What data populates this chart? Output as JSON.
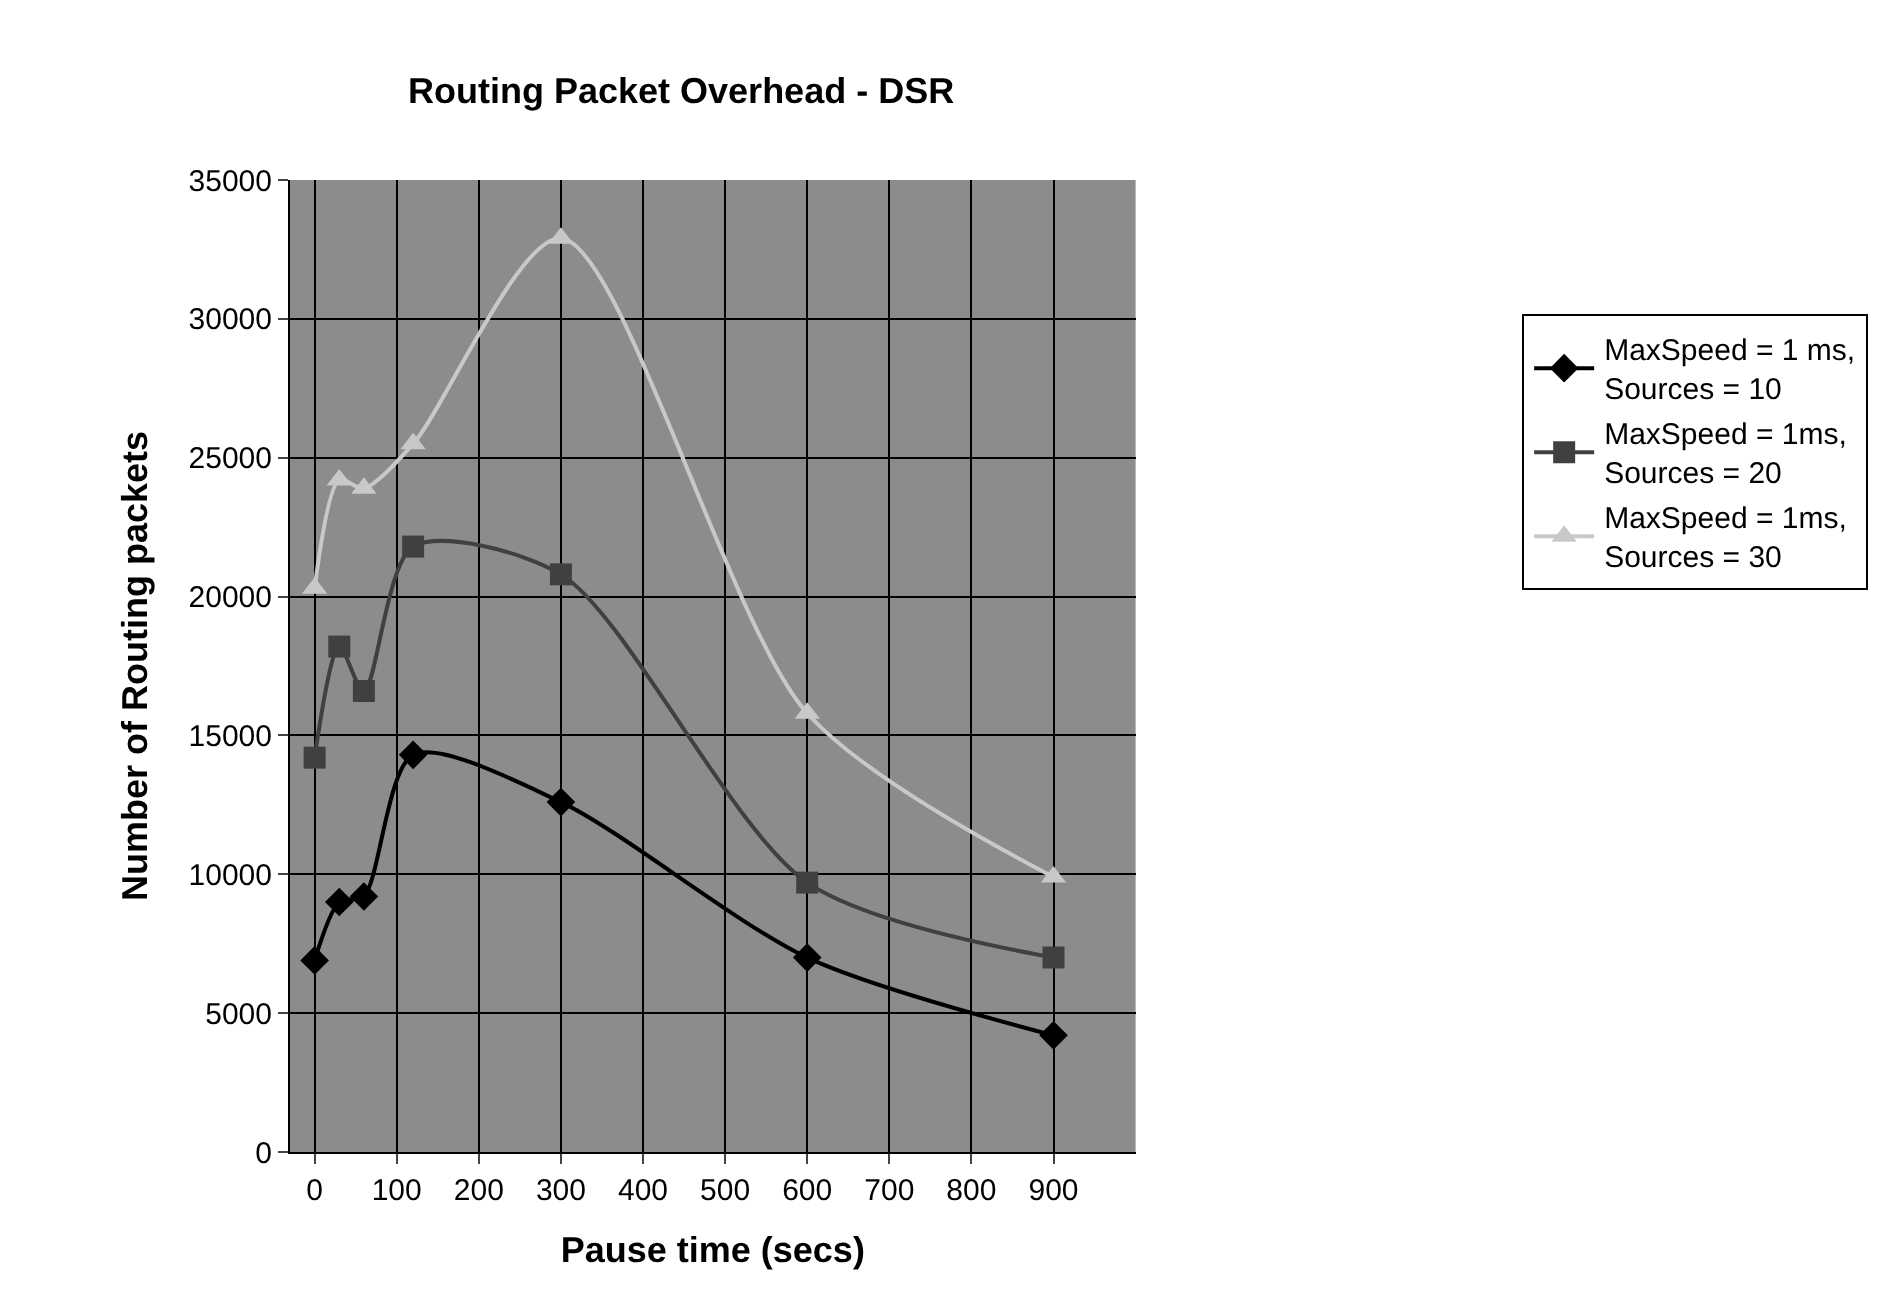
{
  "chart_data": {
    "type": "line",
    "title": "Routing Packet Overhead - DSR",
    "xlabel": "Pause time (secs)",
    "ylabel": "Number of Routing packets",
    "x": [
      0,
      30,
      60,
      120,
      300,
      600,
      900
    ],
    "series": [
      {
        "name": "MaxSpeed = 1 ms, Sources = 10",
        "color": "#000000",
        "marker": "diamond",
        "values": [
          6900,
          9000,
          9200,
          14300,
          12600,
          7000,
          4200
        ]
      },
      {
        "name": "MaxSpeed = 1ms, Sources = 20",
        "color": "#404040",
        "marker": "square",
        "values": [
          14200,
          18200,
          16600,
          21800,
          20800,
          9700,
          7000
        ]
      },
      {
        "name": "MaxSpeed = 1ms, Sources = 30",
        "color": "#c8c8c8",
        "marker": "triangle",
        "values": [
          20300,
          24200,
          23900,
          25500,
          32900,
          15800,
          9900
        ]
      }
    ],
    "xlim": [
      -30,
      1000
    ],
    "xticks": [
      0,
      100,
      200,
      300,
      400,
      500,
      600,
      700,
      800,
      900
    ],
    "ylim": [
      0,
      35000
    ],
    "yticks": [
      0,
      5000,
      10000,
      15000,
      20000,
      25000,
      30000,
      35000
    ],
    "grid": true,
    "legend": "right"
  }
}
